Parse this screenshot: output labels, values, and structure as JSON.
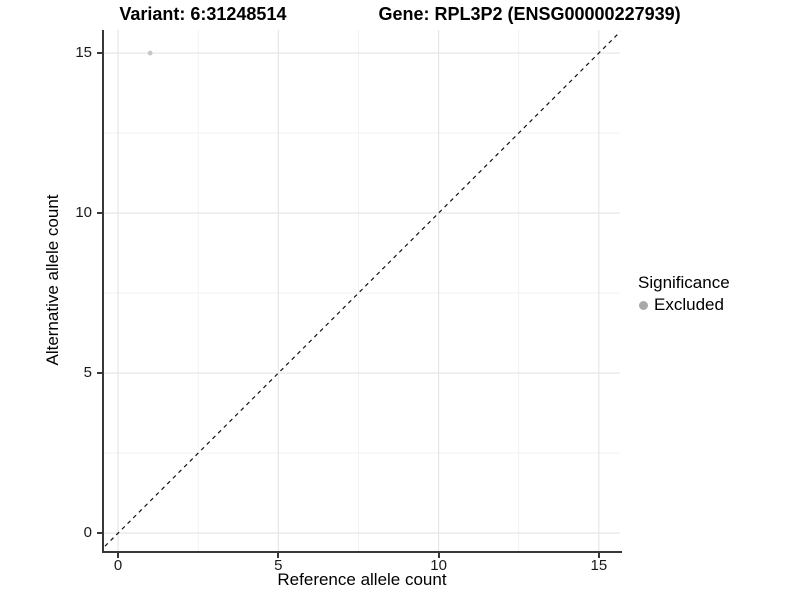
{
  "chart_data": {
    "type": "scatter",
    "title_left": "Variant: 6:31248514",
    "title_right": "Gene: RPL3P2 (ENSG00000227939)",
    "xlabel": "Reference allele count",
    "ylabel": "Alternative allele count",
    "x_ticks": [
      "0",
      "5",
      "10",
      "15"
    ],
    "y_ticks": [
      "0",
      "5",
      "10",
      "15"
    ],
    "x_tick_values": [
      0,
      5,
      10,
      15
    ],
    "y_tick_values": [
      0,
      5,
      10,
      15
    ],
    "minor_grid_values": [
      2.5,
      7.5,
      12.5
    ],
    "xlim": [
      -0.44,
      15.66
    ],
    "ylim": [
      -0.56,
      15.72
    ],
    "grid": "major and minor, light gray on white",
    "series": [
      {
        "name": "Excluded",
        "color": "#c6c6c6",
        "points": [
          {
            "x": 1,
            "y": 15
          }
        ]
      }
    ],
    "reference_line": {
      "kind": "identity y=x",
      "style": "dashed",
      "color": "#111111"
    },
    "legend": {
      "title": "Significance",
      "position": "right",
      "items": [
        {
          "label": "Excluded",
          "color": "#a9a9a9"
        }
      ]
    }
  },
  "colors": {
    "background": "#ffffff",
    "major_grid": "#e4e4e4",
    "minor_grid": "#f2f2f2",
    "axis_line": "#383838",
    "tick_label": "#1a1a1a",
    "title_text": "#000000"
  }
}
